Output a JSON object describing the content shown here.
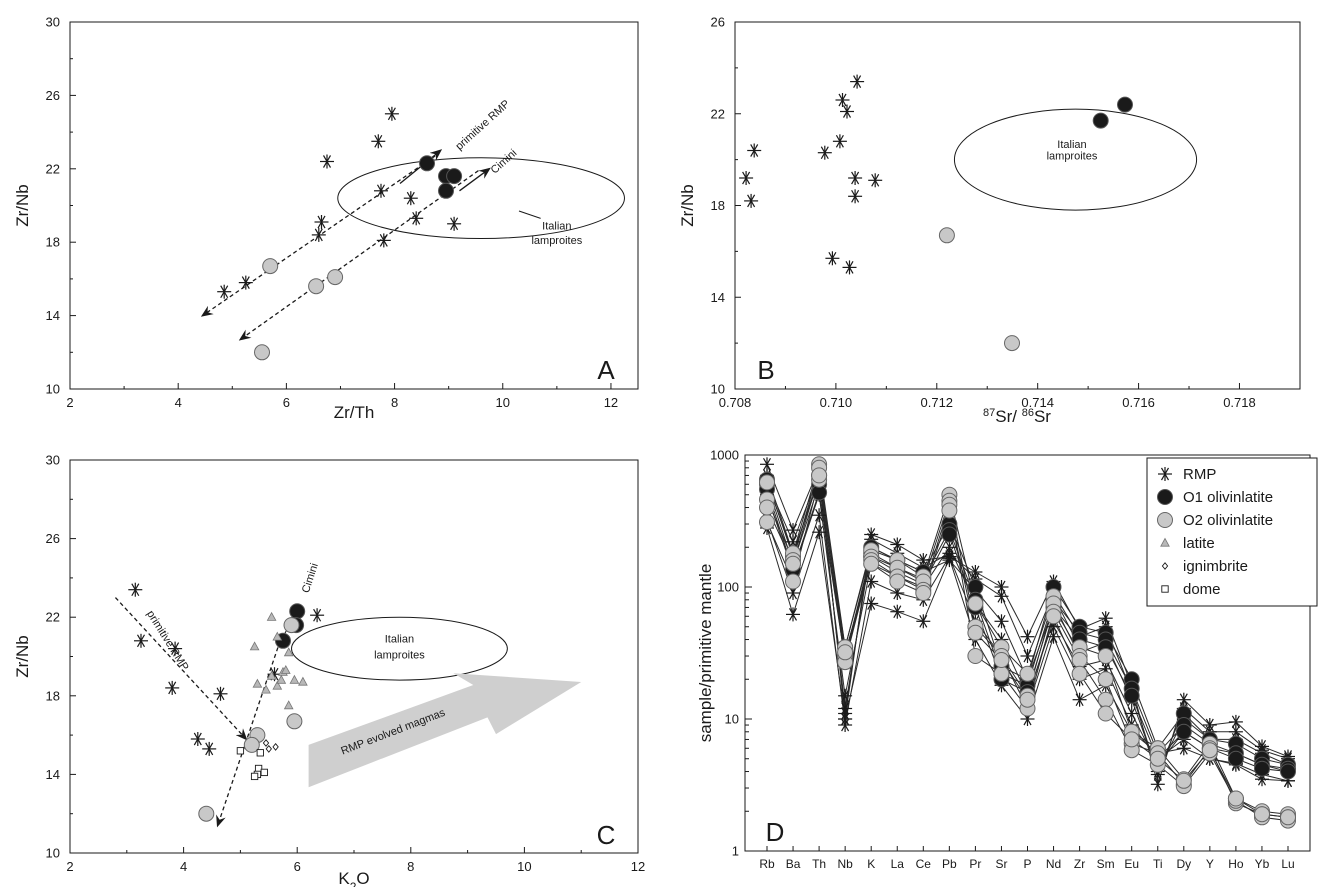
{
  "chart_data": [
    {
      "type": "scatter",
      "panel": "A",
      "xlabel": "Zr/Th",
      "ylabel": "Zr/Nb",
      "xlim": [
        2,
        12.5
      ],
      "ylim": [
        10,
        30
      ],
      "xticks": [
        2,
        4,
        6,
        8,
        10,
        12
      ],
      "yticks": [
        10,
        14,
        18,
        22,
        26,
        30
      ],
      "series": [
        {
          "marker": "asterisk",
          "points": [
            [
              4.85,
              15.3
            ],
            [
              5.25,
              15.8
            ],
            [
              6.6,
              18.4
            ],
            [
              6.65,
              19.1
            ],
            [
              6.75,
              22.4
            ],
            [
              7.7,
              23.5
            ],
            [
              7.95,
              25.0
            ],
            [
              7.75,
              20.8
            ],
            [
              7.8,
              18.1
            ],
            [
              8.3,
              20.4
            ],
            [
              8.4,
              19.3
            ],
            [
              9.1,
              19.0
            ]
          ]
        },
        {
          "marker": "black-circle",
          "points": [
            [
              8.6,
              22.3
            ],
            [
              8.95,
              21.6
            ],
            [
              9.1,
              21.6
            ],
            [
              8.95,
              20.8
            ]
          ]
        },
        {
          "marker": "grey-circle",
          "points": [
            [
              5.7,
              16.7
            ],
            [
              6.55,
              15.6
            ],
            [
              6.9,
              16.1
            ],
            [
              5.55,
              12.0
            ]
          ]
        }
      ],
      "annotations": [
        {
          "text": "primitive RMP"
        },
        {
          "text": "Cimini"
        },
        {
          "text": "Italian"
        },
        {
          "text": "lamproites"
        }
      ],
      "ellipse": {
        "cx": 9.6,
        "cy": 20.4,
        "rx": 2.65,
        "ry": 2.2,
        "label": "Italian lamproites"
      }
    },
    {
      "type": "scatter",
      "panel": "B",
      "xlabel_parts": [
        "87",
        "Sr/ ",
        "86",
        "Sr"
      ],
      "ylabel": "Zr/Nb",
      "xlim": [
        0.708,
        0.7192
      ],
      "ylim": [
        10,
        26
      ],
      "xticks": [
        "0.708",
        "0.710",
        "0.712",
        "0.714",
        "0.716",
        "0.718"
      ],
      "yticks": [
        10,
        14,
        18,
        22,
        26
      ],
      "series": [
        {
          "marker": "asterisk",
          "points": [
            [
              0.70822,
              19.2
            ],
            [
              0.70832,
              18.2
            ],
            [
              0.70838,
              20.4
            ],
            [
              0.70978,
              20.3
            ],
            [
              0.70993,
              15.7
            ],
            [
              0.71008,
              20.8
            ],
            [
              0.71013,
              22.6
            ],
            [
              0.71022,
              22.1
            ],
            [
              0.71027,
              15.3
            ],
            [
              0.71038,
              19.2
            ],
            [
              0.71038,
              18.4
            ],
            [
              0.71042,
              23.4
            ],
            [
              0.71078,
              19.1
            ]
          ]
        },
        {
          "marker": "black-circle",
          "points": [
            [
              0.71525,
              21.7
            ],
            [
              0.71573,
              22.4
            ]
          ]
        },
        {
          "marker": "grey-circle",
          "points": [
            [
              0.7122,
              16.7
            ],
            [
              0.71349,
              12.0
            ]
          ]
        }
      ],
      "annotations": [
        {
          "text": "Italian"
        },
        {
          "text": "lamproites"
        }
      ],
      "ellipse": {
        "cx": 0.71475,
        "cy": 20.0,
        "rx": 0.0024,
        "ry": 2.2,
        "label": "Italian lamproites"
      }
    },
    {
      "type": "scatter",
      "panel": "C",
      "xlabel_parts": [
        "K",
        "2",
        "O"
      ],
      "ylabel": "Zr/Nb",
      "xlim": [
        2,
        12
      ],
      "ylim": [
        10,
        30
      ],
      "xticks": [
        2,
        4,
        6,
        8,
        10,
        12
      ],
      "yticks": [
        10,
        14,
        18,
        22,
        26,
        30
      ],
      "series": [
        {
          "marker": "asterisk",
          "points": [
            [
              3.15,
              23.4
            ],
            [
              3.25,
              20.8
            ],
            [
              3.85,
              20.4
            ],
            [
              3.8,
              18.4
            ],
            [
              4.65,
              18.1
            ],
            [
              4.25,
              15.8
            ],
            [
              4.45,
              15.3
            ],
            [
              5.6,
              19.1
            ],
            [
              6.35,
              22.1
            ]
          ]
        },
        {
          "marker": "black-circle",
          "points": [
            [
              5.75,
              20.8
            ],
            [
              6.0,
              22.3
            ],
            [
              5.98,
              21.6
            ]
          ]
        },
        {
          "marker": "grey-circle",
          "points": [
            [
              5.3,
              16.0
            ],
            [
              5.2,
              15.5
            ],
            [
              5.95,
              16.7
            ],
            [
              4.4,
              12.0
            ],
            [
              5.9,
              21.6
            ]
          ]
        },
        {
          "marker": "triangle",
          "points": [
            [
              5.25,
              20.5
            ],
            [
              5.55,
              22.0
            ],
            [
              5.65,
              21.0
            ],
            [
              5.3,
              18.6
            ],
            [
              5.45,
              18.3
            ],
            [
              5.55,
              19.0
            ],
            [
              5.65,
              18.5
            ],
            [
              5.75,
              19.2
            ],
            [
              5.8,
              19.3
            ],
            [
              5.85,
              20.2
            ],
            [
              5.95,
              18.8
            ],
            [
              6.1,
              18.7
            ],
            [
              5.85,
              17.5
            ],
            [
              5.72,
              18.8
            ]
          ]
        },
        {
          "marker": "diamond",
          "points": [
            [
              5.45,
              15.6
            ],
            [
              5.5,
              15.3
            ],
            [
              5.62,
              15.4
            ]
          ]
        },
        {
          "marker": "square",
          "points": [
            [
              5.0,
              15.2
            ],
            [
              5.35,
              15.1
            ],
            [
              5.32,
              14.3
            ],
            [
              5.3,
              14.0
            ],
            [
              5.42,
              14.1
            ],
            [
              5.25,
              13.9
            ]
          ]
        }
      ],
      "annotations": [
        {
          "text": "primitive RMP"
        },
        {
          "text": "Cimini"
        },
        {
          "text": "Italian"
        },
        {
          "text": "lamproites"
        },
        {
          "text": "RMP evolved magmas"
        }
      ],
      "ellipse": {
        "cx": 7.8,
        "cy": 20.4,
        "rx": 1.9,
        "ry": 1.6,
        "label": "Italian lamproites"
      }
    },
    {
      "type": "line",
      "panel": "D",
      "ylabel": "sample/primitive mantle",
      "yscale": "log",
      "ylim": [
        1,
        1000
      ],
      "yticks": [
        "1",
        "10",
        "100",
        "1000"
      ],
      "categories": [
        "Rb",
        "Ba",
        "Th",
        "Nb",
        "K",
        "La",
        "Ce",
        "Pb",
        "Pr",
        "Sr",
        "P",
        "Nd",
        "Zr",
        "Sm",
        "Eu",
        "Ti",
        "Dy",
        "Y",
        "Ho",
        "Yb",
        "Lu"
      ],
      "legend": {
        "position": "top-right",
        "entries": [
          {
            "marker": "asterisk",
            "label": "RMP"
          },
          {
            "marker": "black-circle",
            "label": "O1 olivinlatite"
          },
          {
            "marker": "grey-circle",
            "label": "O2 olivinlatite"
          },
          {
            "marker": "triangle",
            "label": "latite"
          },
          {
            "marker": "diamond",
            "label": "ignimbrite"
          },
          {
            "marker": "square",
            "label": "dome"
          }
        ]
      },
      "series": [
        {
          "marker": "asterisk",
          "values": [
            850,
            270,
            800,
            10,
            250,
            210,
            160,
            170,
            130,
            100,
            42,
            110,
            48,
            58,
            18,
            3.2,
            14,
            9,
            9.5,
            6.2,
            5.2
          ]
        },
        {
          "marker": "asterisk",
          "values": [
            700,
            180,
            650,
            12,
            200,
            160,
            130,
            160,
            95,
            55,
            20,
            70,
            32,
            38,
            14,
            4.0,
            10,
            7,
            7.0,
            5.5,
            4.5
          ]
        },
        {
          "marker": "asterisk",
          "values": [
            500,
            130,
            500,
            15,
            150,
            120,
            100,
            200,
            75,
            40,
            15,
            55,
            25,
            28,
            11,
            4.5,
            8,
            6,
            5.5,
            4.5,
            4.0
          ]
        },
        {
          "marker": "asterisk",
          "values": [
            320,
            90,
            350,
            9,
            110,
            90,
            80,
            170,
            55,
            30,
            12,
            50,
            20,
            24,
            9,
            5.0,
            7,
            5,
            4.6,
            3.8,
            3.4
          ]
        },
        {
          "marker": "asterisk",
          "values": [
            280,
            62,
            260,
            10,
            75,
            65,
            55,
            165,
            40,
            18,
            10,
            42,
            14,
            18,
            8,
            5.5,
            6,
            5,
            4.5,
            3.5,
            3.4
          ]
        },
        {
          "marker": "asterisk",
          "values": [
            620,
            220,
            720,
            11,
            230,
            180,
            140,
            180,
            115,
            85,
            30,
            90,
            42,
            50,
            16,
            3.8,
            12,
            8,
            8.0,
            5.8,
            5.0
          ]
        },
        {
          "marker": "black-circle",
          "values": [
            650,
            170,
            700,
            35,
            200,
            160,
            130,
            300,
            100,
            25,
            20,
            100,
            50,
            45,
            20,
            6.0,
            11,
            7,
            6.5,
            5.0,
            4.5
          ]
        },
        {
          "marker": "black-circle",
          "values": [
            600,
            150,
            600,
            30,
            180,
            140,
            115,
            270,
            80,
            22,
            18,
            80,
            45,
            40,
            17,
            5.5,
            9,
            6.5,
            5.5,
            4.5,
            4.2
          ]
        },
        {
          "marker": "black-circle",
          "values": [
            550,
            135,
            520,
            28,
            170,
            130,
            105,
            250,
            70,
            20,
            16,
            70,
            40,
            35,
            15,
            5.0,
            8,
            6,
            5.0,
            4.2,
            4.0
          ]
        },
        {
          "marker": "grey-circle",
          "values": [
            620,
            180,
            850,
            35,
            190,
            160,
            120,
            500,
            75,
            35,
            22,
            85,
            35,
            30,
            8,
            6.0,
            3.5,
            6.5,
            2.5,
            2.0,
            1.9
          ]
        },
        {
          "marker": "grey-circle",
          "values": [
            460,
            160,
            800,
            30,
            170,
            140,
            110,
            450,
            50,
            30,
            15,
            75,
            30,
            20,
            6.5,
            5.5,
            3.2,
            6.0,
            2.3,
            1.9,
            1.8
          ]
        },
        {
          "marker": "grey-circle",
          "values": [
            310,
            110,
            650,
            27,
            160,
            120,
            95,
            420,
            30,
            22,
            12,
            65,
            28,
            14,
            5.8,
            4.5,
            3.1,
            5.5,
            2.4,
            1.8,
            1.7
          ]
        },
        {
          "marker": "grey-circle",
          "values": [
            400,
            150,
            700,
            32,
            150,
            110,
            90,
            380,
            45,
            28,
            14,
            60,
            22,
            11,
            7,
            5.0,
            3.4,
            5.8,
            2.5,
            1.9,
            1.8
          ]
        }
      ]
    }
  ]
}
